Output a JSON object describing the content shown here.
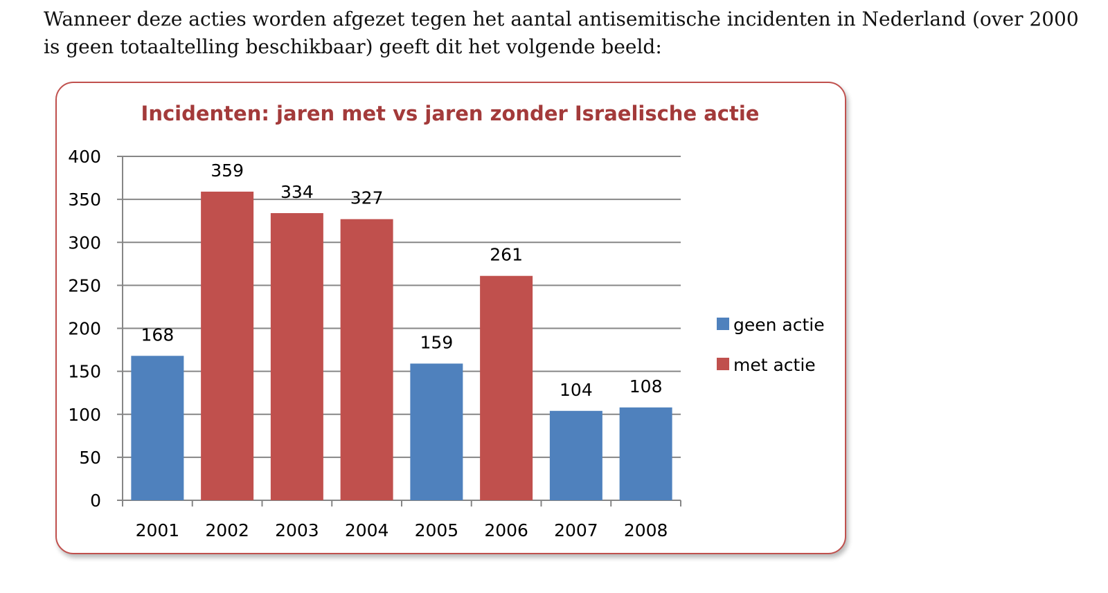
{
  "intro_text": "Wanneer deze acties worden afgezet tegen het aantal antisemitische incidenten in Nederland (over 2000 is geen totaaltelling beschikbaar) geeft dit het volgende beeld:",
  "chart_data": {
    "type": "bar",
    "title": "Incidenten: jaren met vs jaren zonder Israelische actie",
    "xlabel": "",
    "ylabel": "",
    "ylim": [
      0,
      400
    ],
    "yticks": [
      "0",
      "50",
      "100",
      "150",
      "200",
      "250",
      "300",
      "350",
      "400"
    ],
    "grid": true,
    "legend_position": "right",
    "categories": [
      "2001",
      "2002",
      "2003",
      "2004",
      "2005",
      "2006",
      "2007",
      "2008"
    ],
    "values": [
      168,
      359,
      334,
      327,
      159,
      261,
      104,
      108
    ],
    "bar_series": [
      "geen actie",
      "met actie",
      "met actie",
      "met actie",
      "geen actie",
      "met actie",
      "geen actie",
      "geen actie"
    ],
    "series": [
      {
        "name": "geen actie",
        "color": "#4f81bd"
      },
      {
        "name": "met actie",
        "color": "#c0504d"
      }
    ]
  },
  "colors": {
    "frame_border": "#c0504d",
    "title": "#a33a3a",
    "gridline": "#868686"
  }
}
